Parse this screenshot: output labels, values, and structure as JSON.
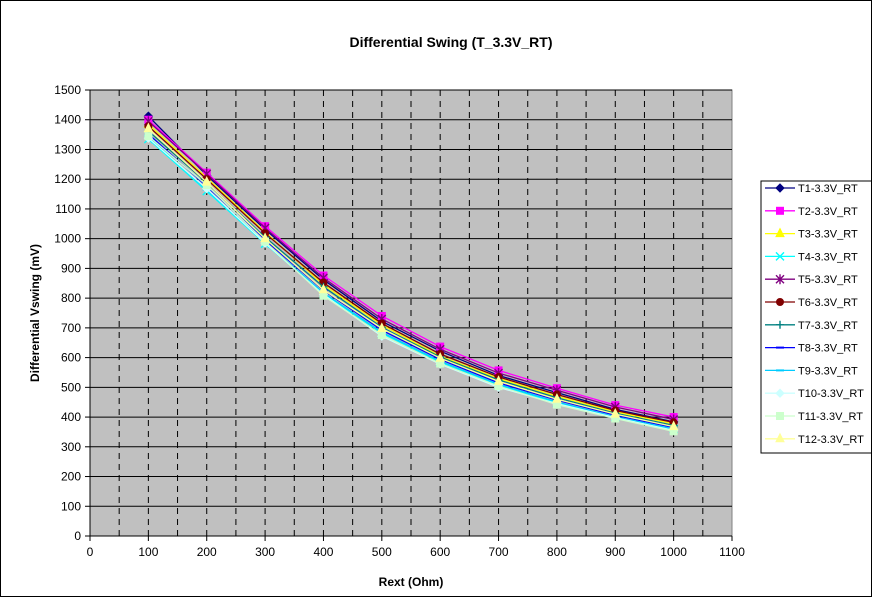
{
  "chart_data": {
    "type": "line",
    "title": "Differential Swing (T_3.3V_RT)",
    "xlabel": "Rext (Ohm)",
    "ylabel": "Differential Vswing (mV)",
    "xlim": [
      0,
      1100
    ],
    "ylim": [
      0,
      1500
    ],
    "xticks": [
      0,
      100,
      200,
      300,
      400,
      500,
      600,
      700,
      800,
      900,
      1000,
      1100
    ],
    "yticks": [
      0,
      100,
      200,
      300,
      400,
      500,
      600,
      700,
      800,
      900,
      1000,
      1100,
      1200,
      1300,
      1400,
      1500
    ],
    "grid": true,
    "plot_background": "#c0c0c0",
    "legend": "right",
    "x": [
      100,
      200,
      300,
      400,
      500,
      600,
      700,
      800,
      900,
      1000
    ],
    "series": [
      {
        "name": "T1-3.3V_RT",
        "color": "#000080",
        "marker": "diamond",
        "values": [
          1412,
          1213,
          1031,
          862,
          722,
          622,
          540,
          482,
          426,
          384
        ]
      },
      {
        "name": "T2-3.3V_RT",
        "color": "#ff00ff",
        "marker": "square",
        "values": [
          1400,
          1222,
          1042,
          876,
          740,
          637,
          557,
          497,
          440,
          400
        ]
      },
      {
        "name": "T3-3.3V_RT",
        "color": "#ffff00",
        "marker": "triangle",
        "values": [
          1385,
          1205,
          1022,
          845,
          710,
          605,
          530,
          470,
          418,
          377
        ]
      },
      {
        "name": "T4-3.3V_RT",
        "color": "#00ffff",
        "marker": "x",
        "values": [
          1335,
          1160,
          983,
          815,
          682,
          585,
          508,
          448,
          400,
          360
        ]
      },
      {
        "name": "T5-3.3V_RT",
        "color": "#800080",
        "marker": "star",
        "values": [
          1395,
          1218,
          1036,
          868,
          730,
          628,
          548,
          490,
          434,
          392
        ]
      },
      {
        "name": "T6-3.3V_RT",
        "color": "#800000",
        "marker": "circle",
        "values": [
          1378,
          1200,
          1018,
          852,
          715,
          612,
          535,
          476,
          422,
          382
        ]
      },
      {
        "name": "T7-3.3V_RT",
        "color": "#008080",
        "marker": "plus",
        "values": [
          1362,
          1188,
          1005,
          838,
          702,
          602,
          525,
          465,
          413,
          372
        ]
      },
      {
        "name": "T8-3.3V_RT",
        "color": "#0000ff",
        "marker": "dash",
        "values": [
          1352,
          1176,
          995,
          826,
          692,
          594,
          515,
          457,
          406,
          365
        ]
      },
      {
        "name": "T9-3.3V_RT",
        "color": "#00ccff",
        "marker": "dash",
        "values": [
          1342,
          1165,
          987,
          818,
          685,
          588,
          510,
          451,
          401,
          360
        ]
      },
      {
        "name": "T10-3.3V_RT",
        "color": "#ccffff",
        "marker": "diamond",
        "values": [
          1338,
          1168,
          985,
          812,
          672,
          578,
          500,
          445,
          398,
          355
        ]
      },
      {
        "name": "T11-3.3V_RT",
        "color": "#ccffcc",
        "marker": "square",
        "values": [
          1345,
          1180,
          990,
          808,
          676,
          580,
          504,
          442,
          395,
          352
        ]
      },
      {
        "name": "T12-3.3V_RT",
        "color": "#ffff99",
        "marker": "triangle",
        "values": [
          1370,
          1190,
          1000,
          828,
          698,
          598,
          520,
          460,
          410,
          368
        ]
      }
    ]
  }
}
